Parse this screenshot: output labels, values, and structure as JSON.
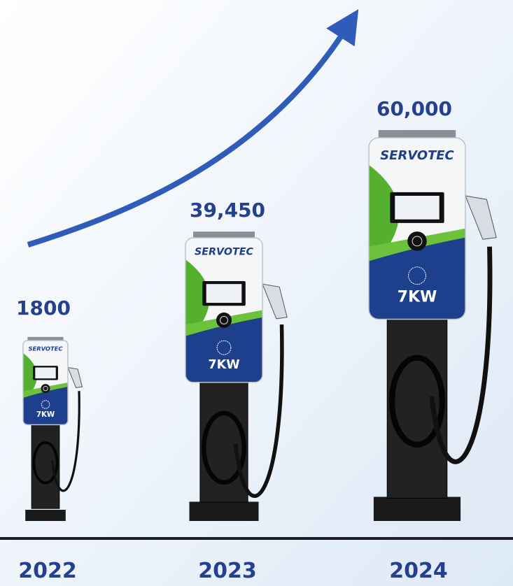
{
  "items": [
    {
      "year": "2022",
      "value": "1800"
    },
    {
      "year": "2023",
      "value": "39,450"
    },
    {
      "year": "2024",
      "value": "60,000"
    }
  ],
  "charger": {
    "brand": "SERVOTEC",
    "rating": "7KW"
  }
}
